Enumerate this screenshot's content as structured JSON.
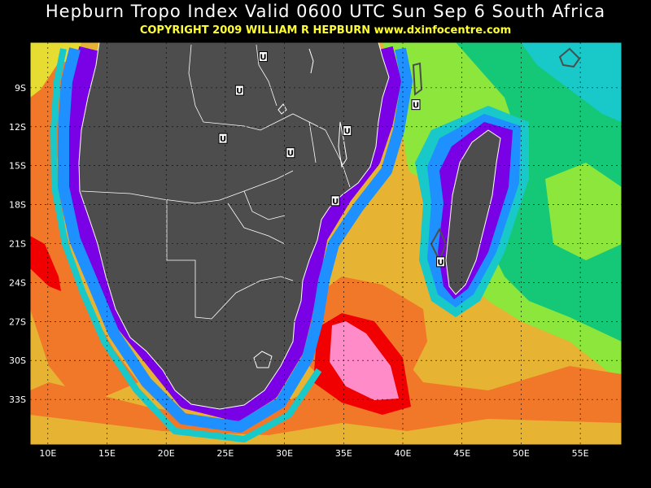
{
  "header": {
    "title": "Hepburn Tropo Index Valid 0600 UTC Sun Sep 6 South Africa",
    "subtitle": "COPYRIGHT 2009   WILLIAM R HEPBURN   www.dxinfocentre.com"
  },
  "map": {
    "lon_range": [
      8.5,
      58.5
    ],
    "lat_range": [
      -36.5,
      -5.5
    ],
    "lat_labels": [
      "9S",
      "12S",
      "15S",
      "18S",
      "21S",
      "24S",
      "27S",
      "30S",
      "33S"
    ],
    "lat_values": [
      -9,
      -12,
      -15,
      -18,
      -21,
      -24,
      -27,
      -30,
      -33
    ],
    "lon_labels": [
      "10E",
      "15E",
      "20E",
      "25E",
      "30E",
      "35E",
      "40E",
      "45E",
      "50E",
      "55E"
    ],
    "lon_values": [
      10,
      15,
      20,
      25,
      30,
      35,
      40,
      45,
      50,
      55
    ],
    "grid": true,
    "colors": {
      "land": "#4d4d4d",
      "purple": "#7a00e6",
      "blue": "#1e90ff",
      "cyan": "#19c8c8",
      "green": "#14c878",
      "lightgreen": "#8ce63c",
      "yellow": "#e6dc32",
      "gold": "#e6b432",
      "orange": "#f07828",
      "red": "#f00000",
      "pink": "#ff8cc8"
    },
    "markers": [
      {
        "label": "U",
        "lon": 28.2,
        "lat": -6.6
      },
      {
        "label": "U",
        "lon": 26.2,
        "lat": -9.2
      },
      {
        "label": "U",
        "lon": 41.1,
        "lat": -10.3
      },
      {
        "label": "U",
        "lon": 35.3,
        "lat": -12.3
      },
      {
        "label": "U",
        "lon": 24.8,
        "lat": -12.9
      },
      {
        "label": "U",
        "lon": 30.5,
        "lat": -14.0
      },
      {
        "label": "U",
        "lon": 34.3,
        "lat": -17.7
      },
      {
        "label": "U",
        "lon": 43.2,
        "lat": -22.4
      }
    ]
  }
}
